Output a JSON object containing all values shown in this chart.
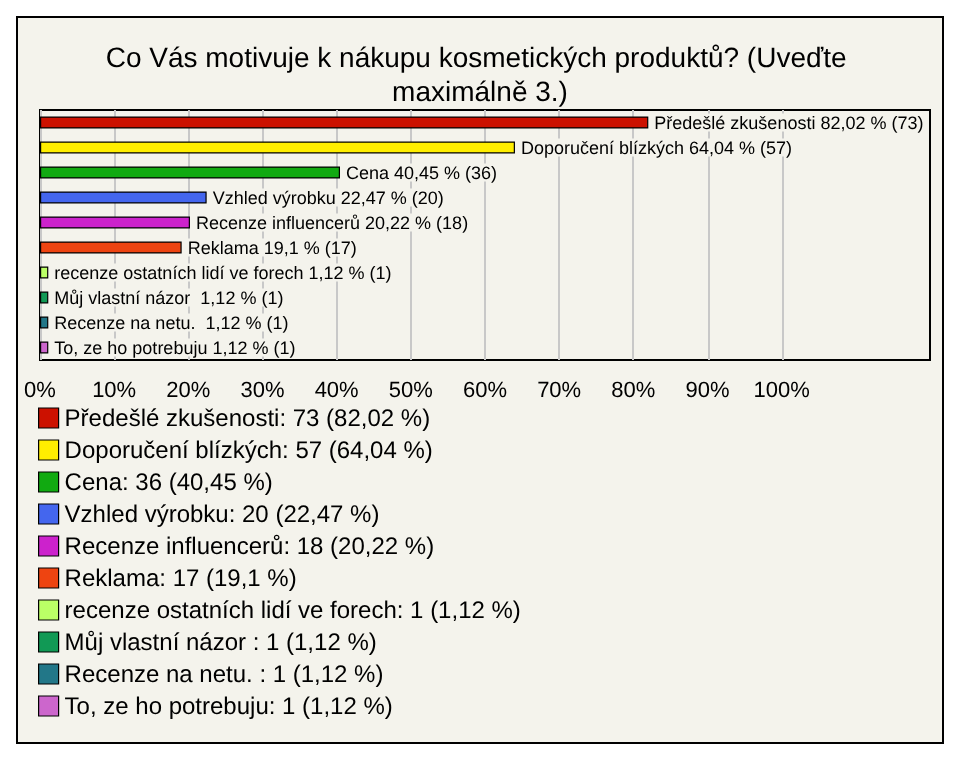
{
  "chart_data": {
    "type": "bar",
    "orientation": "horizontal",
    "title": "Co Vás motivuje k nákupu kosmetických produktů? (Uveďte maximálně 3.)",
    "categories": [
      null,
      null,
      null,
      null,
      null,
      null,
      null,
      null,
      null,
      null
    ],
    "xlim": [
      0,
      120
    ],
    "xticks": [
      {
        "value": 0,
        "label": "0%"
      },
      {
        "value": 10,
        "label": "10%"
      },
      {
        "value": 20,
        "label": "20%"
      },
      {
        "value": 30,
        "label": "30%"
      },
      {
        "value": 40,
        "label": "40%"
      },
      {
        "value": 50,
        "label": "50%"
      },
      {
        "value": 60,
        "label": "60%"
      },
      {
        "value": 70,
        "label": "70%"
      },
      {
        "value": 80,
        "label": "80%"
      },
      {
        "value": 90,
        "label": "90%"
      },
      {
        "value": 100,
        "label": "100%"
      }
    ],
    "grid": "x",
    "legend": "bottom",
    "series": [
      {
        "name": "Předešlé zkušenosti: 73 (82,02 %)",
        "color": "#cc1100",
        "values": [
          82.02,
          null,
          null,
          null,
          null,
          null,
          null,
          null,
          null,
          null
        ],
        "value_labels": [
          "Předešlé zkušenosti 82,02 % (73)",
          null,
          null,
          null,
          null,
          null,
          null,
          null,
          null,
          null
        ]
      },
      {
        "name": "Doporučení blízkých: 57 (64,04 %)",
        "color": "#ffee00",
        "values": [
          null,
          64.04,
          null,
          null,
          null,
          null,
          null,
          null,
          null,
          null
        ],
        "value_labels": [
          null,
          "Doporučení blízkých 64,04 % (57)",
          null,
          null,
          null,
          null,
          null,
          null,
          null,
          null
        ]
      },
      {
        "name": "Cena: 36 (40,45 %)",
        "color": "#11aa11",
        "values": [
          null,
          null,
          40.45,
          null,
          null,
          null,
          null,
          null,
          null,
          null
        ],
        "value_labels": [
          null,
          null,
          "Cena 40,45 % (36)",
          null,
          null,
          null,
          null,
          null,
          null,
          null
        ]
      },
      {
        "name": "Vzhled výrobku: 20 (22,47 %)",
        "color": "#4466ee",
        "values": [
          null,
          null,
          null,
          22.47,
          null,
          null,
          null,
          null,
          null,
          null
        ],
        "value_labels": [
          null,
          null,
          null,
          "Vzhled výrobku 22,47 % (20)",
          null,
          null,
          null,
          null,
          null,
          null
        ]
      },
      {
        "name": "Recenze influencerů: 18 (20,22 %)",
        "color": "#cc22cc",
        "values": [
          null,
          null,
          null,
          null,
          20.22,
          null,
          null,
          null,
          null,
          null
        ],
        "value_labels": [
          null,
          null,
          null,
          null,
          "Recenze influencerů 20,22 % (18)",
          null,
          null,
          null,
          null,
          null
        ]
      },
      {
        "name": "Reklama: 17 (19,1 %)",
        "color": "#ee4411",
        "values": [
          null,
          null,
          null,
          null,
          null,
          19.1,
          null,
          null,
          null,
          null
        ],
        "value_labels": [
          null,
          null,
          null,
          null,
          null,
          "Reklama 19,1 % (17)",
          null,
          null,
          null,
          null
        ]
      },
      {
        "name": "recenze ostatních lidí ve forech: 1 (1,12 %)",
        "color": "#bbff66",
        "values": [
          null,
          null,
          null,
          null,
          null,
          null,
          1.12,
          null,
          null,
          null
        ],
        "value_labels": [
          null,
          null,
          null,
          null,
          null,
          null,
          "recenze ostatních lidí ve forech 1,12 % (1)",
          null,
          null,
          null
        ]
      },
      {
        "name": "Můj vlastní názor : 1 (1,12 %)",
        "color": "#119955",
        "values": [
          null,
          null,
          null,
          null,
          null,
          null,
          null,
          1.12,
          null,
          null
        ],
        "value_labels": [
          null,
          null,
          null,
          null,
          null,
          null,
          null,
          "Můj vlastní názor  1,12 % (1)",
          null,
          null
        ]
      },
      {
        "name": "Recenze na netu. : 1 (1,12 %)",
        "color": "#227788",
        "values": [
          null,
          null,
          null,
          null,
          null,
          null,
          null,
          null,
          1.12,
          null
        ],
        "value_labels": [
          null,
          null,
          null,
          null,
          null,
          null,
          null,
          null,
          "Recenze na netu.  1,12 % (1)",
          null
        ]
      },
      {
        "name": "To, ze ho potrebuju: 1 (1,12 %)",
        "color": "#cc66cc",
        "values": [
          null,
          null,
          null,
          null,
          null,
          null,
          null,
          null,
          null,
          1.12
        ],
        "value_labels": [
          null,
          null,
          null,
          null,
          null,
          null,
          null,
          null,
          null,
          "To, ze ho potrebuju 1,12 % (1)"
        ]
      }
    ]
  }
}
